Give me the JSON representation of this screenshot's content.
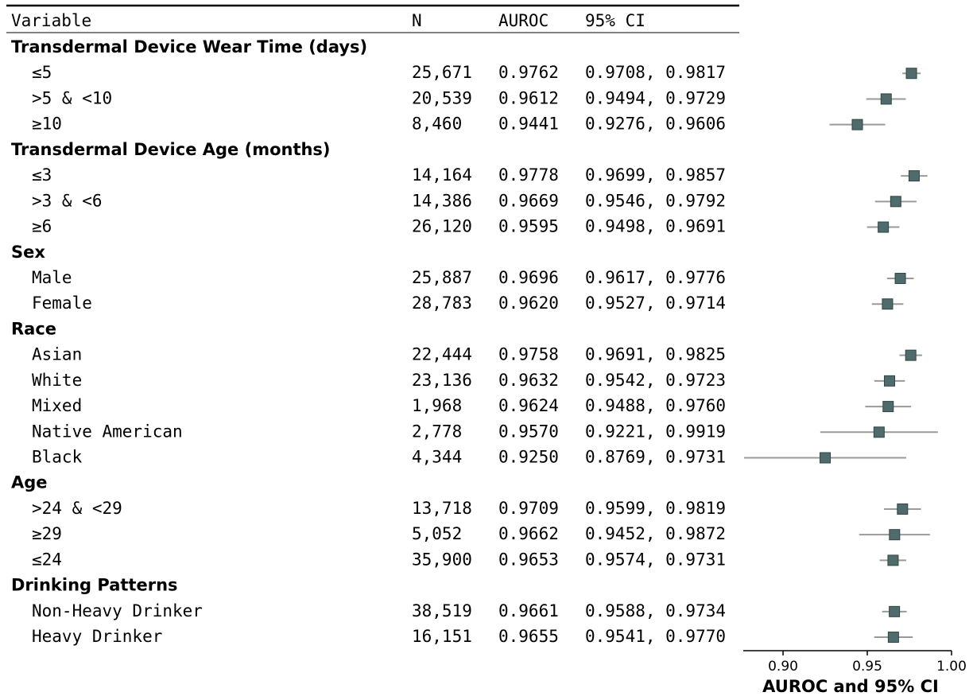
{
  "chart_data": {
    "type": "forest",
    "columns": [
      "Variable",
      "N",
      "AUROC",
      "95% CI"
    ],
    "xlabel": "AUROC and 95% CI",
    "xlim": [
      0.8764,
      1.0
    ],
    "xticks": [
      {
        "value": 0.9,
        "label": "0.90"
      },
      0.95,
      {
        "value": 1.0,
        "label": "1.00"
      }
    ],
    "marker_color": "#4f6b6b",
    "ci_color": "#9a9a9a",
    "groups": [
      {
        "name": "Transdermal Device Wear Time (days)",
        "rows": [
          {
            "label": "≤5",
            "n": "25,671",
            "auroc": 0.9762,
            "auroc_label": "0.9762",
            "ci_low": 0.9708,
            "ci_high": 0.9817,
            "ci_label": "0.9708, 0.9817"
          },
          {
            "label": ">5 & <10",
            "n": "20,539",
            "auroc": 0.9612,
            "auroc_label": "0.9612",
            "ci_low": 0.9494,
            "ci_high": 0.9729,
            "ci_label": "0.9494, 0.9729"
          },
          {
            "label": "≥10",
            "n": "8,460",
            "auroc": 0.9441,
            "auroc_label": "0.9441",
            "ci_low": 0.9276,
            "ci_high": 0.9606,
            "ci_label": "0.9276, 0.9606"
          }
        ]
      },
      {
        "name": "Transdermal Device Age (months)",
        "rows": [
          {
            "label": "≤3",
            "n": "14,164",
            "auroc": 0.9778,
            "auroc_label": "0.9778",
            "ci_low": 0.9699,
            "ci_high": 0.9857,
            "ci_label": "0.9699, 0.9857"
          },
          {
            "label": ">3 & <6",
            "n": "14,386",
            "auroc": 0.9669,
            "auroc_label": "0.9669",
            "ci_low": 0.9546,
            "ci_high": 0.9792,
            "ci_label": "0.9546, 0.9792"
          },
          {
            "label": "≥6",
            "n": "26,120",
            "auroc": 0.9595,
            "auroc_label": "0.9595",
            "ci_low": 0.9498,
            "ci_high": 0.9691,
            "ci_label": "0.9498, 0.9691"
          }
        ]
      },
      {
        "name": "Sex",
        "rows": [
          {
            "label": "Male",
            "n": "25,887",
            "auroc": 0.9696,
            "auroc_label": "0.9696",
            "ci_low": 0.9617,
            "ci_high": 0.9776,
            "ci_label": "0.9617, 0.9776"
          },
          {
            "label": "Female",
            "n": "28,783",
            "auroc": 0.962,
            "auroc_label": "0.9620",
            "ci_low": 0.9527,
            "ci_high": 0.9714,
            "ci_label": "0.9527, 0.9714"
          }
        ]
      },
      {
        "name": "Race",
        "rows": [
          {
            "label": "Asian",
            "n": "22,444",
            "auroc": 0.9758,
            "auroc_label": "0.9758",
            "ci_low": 0.9691,
            "ci_high": 0.9825,
            "ci_label": "0.9691, 0.9825"
          },
          {
            "label": "White",
            "n": "23,136",
            "auroc": 0.9632,
            "auroc_label": "0.9632",
            "ci_low": 0.9542,
            "ci_high": 0.9723,
            "ci_label": "0.9542, 0.9723"
          },
          {
            "label": "Mixed",
            "n": "1,968",
            "auroc": 0.9624,
            "auroc_label": "0.9624",
            "ci_low": 0.9488,
            "ci_high": 0.976,
            "ci_label": "0.9488, 0.9760"
          },
          {
            "label": "Native American",
            "n": "2,778",
            "auroc": 0.957,
            "auroc_label": "0.9570",
            "ci_low": 0.9221,
            "ci_high": 0.9919,
            "ci_label": "0.9221, 0.9919"
          },
          {
            "label": "Black",
            "n": "4,344",
            "auroc": 0.925,
            "auroc_label": "0.9250",
            "ci_low": 0.8769,
            "ci_high": 0.9731,
            "ci_label": "0.8769, 0.9731"
          }
        ]
      },
      {
        "name": "Age",
        "rows": [
          {
            "label": ">24 & <29",
            "n": "13,718",
            "auroc": 0.9709,
            "auroc_label": "0.9709",
            "ci_low": 0.9599,
            "ci_high": 0.9819,
            "ci_label": "0.9599, 0.9819"
          },
          {
            "label": "≥29",
            "n": "5,052",
            "auroc": 0.9662,
            "auroc_label": "0.9662",
            "ci_low": 0.9452,
            "ci_high": 0.9872,
            "ci_label": "0.9452, 0.9872"
          },
          {
            "label": "≤24",
            "n": "35,900",
            "auroc": 0.9653,
            "auroc_label": "0.9653",
            "ci_low": 0.9574,
            "ci_high": 0.9731,
            "ci_label": "0.9574, 0.9731"
          }
        ]
      },
      {
        "name": "Drinking Patterns",
        "rows": [
          {
            "label": "Non-Heavy Drinker",
            "n": "38,519",
            "auroc": 0.9661,
            "auroc_label": "0.9661",
            "ci_low": 0.9588,
            "ci_high": 0.9734,
            "ci_label": "0.9588, 0.9734"
          },
          {
            "label": "Heavy Drinker",
            "n": "16,151",
            "auroc": 0.9655,
            "auroc_label": "0.9655",
            "ci_low": 0.9541,
            "ci_high": 0.977,
            "ci_label": "0.9541, 0.9770"
          }
        ]
      }
    ]
  }
}
